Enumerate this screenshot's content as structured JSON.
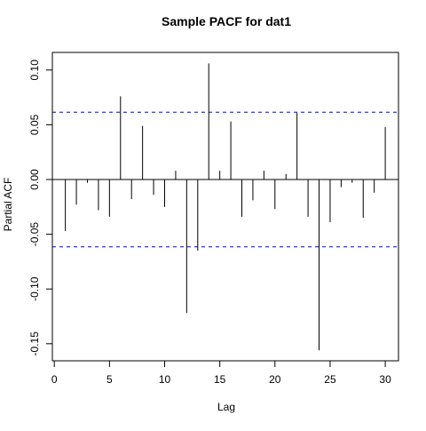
{
  "chart_data": {
    "type": "bar",
    "title": "Sample PACF for dat1",
    "xlabel": "Lag",
    "ylabel": "Partial ACF",
    "xlim": [
      0,
      31
    ],
    "ylim": [
      -0.16,
      0.115
    ],
    "x_ticks": [
      0,
      5,
      10,
      15,
      20,
      25,
      30
    ],
    "x_tick_labels": [
      "0",
      "5",
      "10",
      "15",
      "20",
      "25",
      "30"
    ],
    "y_ticks": [
      -0.15,
      -0.1,
      -0.05,
      0.0,
      0.05,
      0.1
    ],
    "y_tick_labels": [
      "-0.15",
      "-0.10",
      "-0.05",
      "0.00",
      "0.05",
      "0.10"
    ],
    "confidence_bound": 0.0615,
    "grid": false,
    "lags": [
      1,
      2,
      3,
      4,
      5,
      6,
      7,
      8,
      9,
      10,
      11,
      12,
      13,
      14,
      15,
      16,
      17,
      18,
      19,
      20,
      21,
      22,
      23,
      24,
      25,
      26,
      27,
      28,
      29,
      30
    ],
    "values": [
      -0.047,
      -0.023,
      -0.003,
      -0.028,
      -0.034,
      0.076,
      -0.018,
      0.049,
      -0.014,
      -0.025,
      0.008,
      -0.122,
      -0.065,
      0.106,
      0.008,
      0.053,
      -0.034,
      -0.019,
      0.008,
      -0.027,
      0.005,
      0.061,
      -0.034,
      -0.156,
      -0.039,
      -0.007,
      -0.003,
      -0.035,
      -0.012,
      0.048
    ],
    "colors": {
      "bars": "#000000",
      "bounds": "#0000FF",
      "zero_line": "#000000",
      "axes": "#000000"
    }
  }
}
